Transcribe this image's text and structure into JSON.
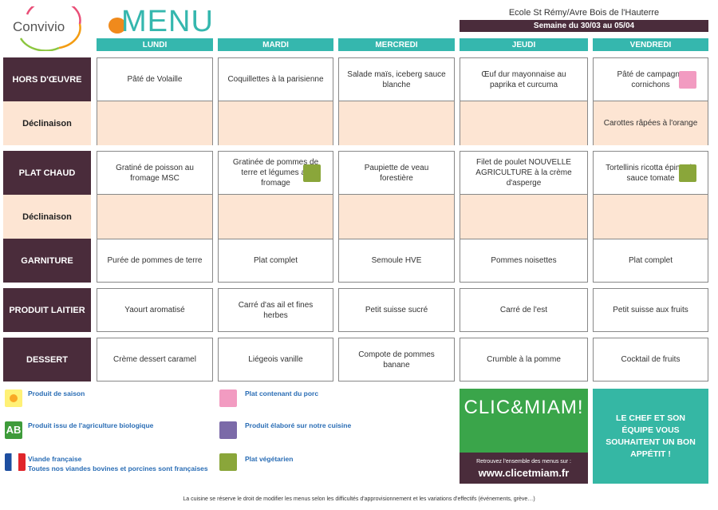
{
  "header": {
    "brand": "Convivio",
    "title": "MENU",
    "school": "Ecole St Rémy/Avre Bois de l'Hauterre",
    "week": "Semaine du 30/03 au 05/04"
  },
  "days": [
    "LUNDI",
    "MARDI",
    "MERCREDI",
    "JEUDI",
    "VENDREDI"
  ],
  "rows": [
    {
      "label": "HORS D'ŒUVRE",
      "cells": [
        "Pâté de Volaille",
        "Coquillettes à la parisienne",
        "Salade maïs, iceberg sauce blanche",
        "Œuf dur mayonnaise au paprika et curcuma",
        "Pâté de campagne cornichons"
      ]
    },
    {
      "label": "Déclinaison",
      "cells": [
        null,
        null,
        null,
        null,
        "Carottes râpées à l'orange"
      ]
    },
    {
      "label": "PLAT CHAUD",
      "cells": [
        "Gratiné de poisson au fromage MSC",
        "Gratinée de pommes de terre et légumes au fromage",
        "Paupiette de veau forestière",
        "Filet de poulet NOUVELLE AGRICULTURE à la crème d'asperge",
        "Tortellinis ricotta épinards sauce tomate"
      ]
    },
    {
      "label": "Déclinaison",
      "cells": [
        null,
        null,
        null,
        null,
        null
      ]
    },
    {
      "label": "GARNITURE",
      "cells": [
        "Purée de pommes de terre",
        "Plat complet",
        "Semoule HVE",
        "Pommes noisettes",
        "Plat complet"
      ]
    },
    {
      "label": "PRODUIT LAITIER",
      "cells": [
        "Yaourt aromatisé",
        "Carré d'as ail et fines herbes",
        "Petit suisse sucré",
        "Carré de l'est",
        "Petit suisse aux fruits"
      ]
    },
    {
      "label": "DESSERT",
      "cells": [
        "Crème dessert caramel",
        "Liégeois vanille",
        "Compote de pommes banane",
        "Crumble à la pomme",
        "Cocktail de fruits"
      ]
    }
  ],
  "legend": [
    "Produit de saison",
    "Produit issu de l'agriculture biologique",
    "Viande française",
    "Toutes nos viandes bovines et porcines sont françaises",
    "Plat contenant du porc",
    "Produit élaboré sur notre cuisine",
    "Plat végétarien"
  ],
  "promo": {
    "brand": "CLIC&MIAM!",
    "caption": "Retrouvez l'ensemble des menus sur :",
    "url": "www.clicetmiam.fr"
  },
  "greeting": "LE CHEF ET SON ÉQUIPE VOUS SOUHAITENT UN BON APPÉTIT !",
  "footer": "La cuisine se réserve le droit de modifier les menus selon les difficultés d'approvisionnement et les variations d'effectifs (événements, grève…)"
}
